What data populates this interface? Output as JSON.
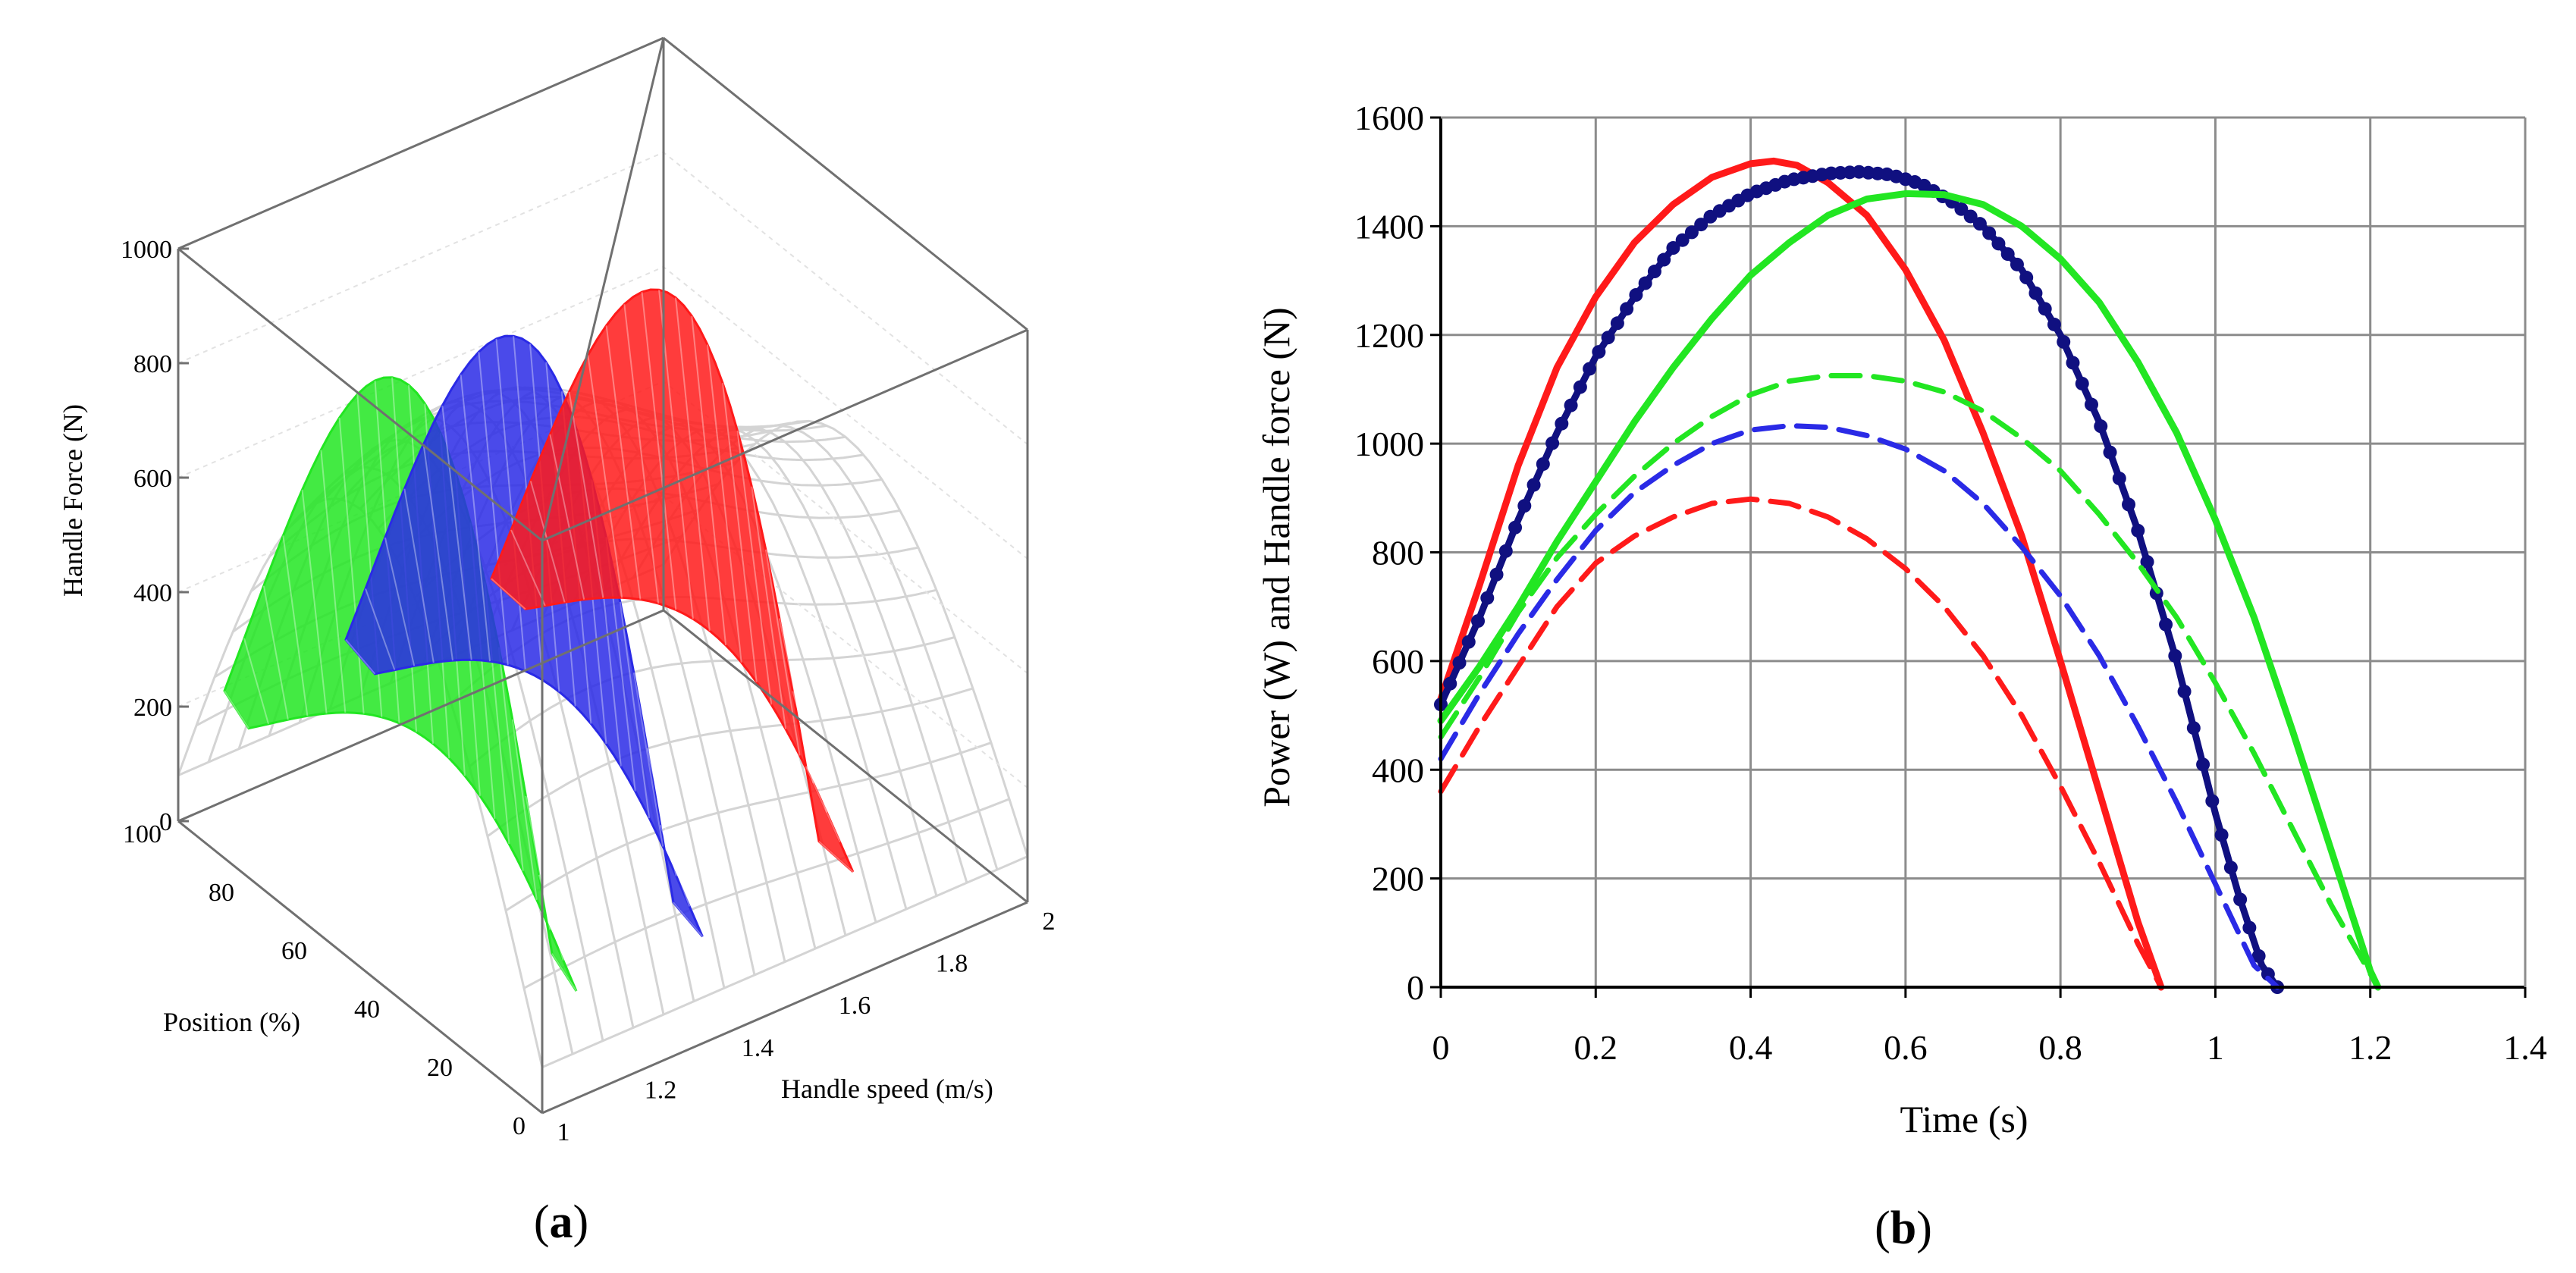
{
  "panels": {
    "a": {
      "label_open": "(",
      "label_letter": "a",
      "label_close": ")"
    },
    "b": {
      "label_open": "(",
      "label_letter": "b",
      "label_close": ")"
    }
  },
  "colors": {
    "red": "#ff1a1a",
    "blue": "#2a2ae6",
    "green": "#22e622",
    "navy": "#101080",
    "grid": "#8c8c8c",
    "wire": "#d4d4d4"
  },
  "chart_data": [
    {
      "type": "surface3d",
      "panel": "a",
      "zlabel": "Handle Force (N)",
      "xlabel": "Handle speed (m/s)",
      "ylabel": "Position (%)",
      "z_ticks": [
        "0",
        "200",
        "400",
        "600",
        "800",
        "1000"
      ],
      "x_ticks": [
        "1",
        "1.2",
        "1.4",
        "1.6",
        "1.8",
        "2"
      ],
      "y_ticks": [
        "0",
        "20",
        "40",
        "60",
        "80",
        "100"
      ],
      "zlim": [
        0,
        1000
      ],
      "xlim": [
        1,
        2
      ],
      "ylim": [
        0,
        100
      ],
      "ribbons": [
        {
          "color": "green",
          "peak_force": 980
        },
        {
          "color": "blue",
          "peak_force": 960
        },
        {
          "color": "red",
          "peak_force": 930
        }
      ]
    },
    {
      "type": "line",
      "panel": "b",
      "xlabel": "Time (s)",
      "ylabel": "Power (W) and Handle force (N)",
      "xlim": [
        0,
        1.4
      ],
      "ylim": [
        0,
        1600
      ],
      "x_ticks": [
        "0",
        "0.2",
        "0.4",
        "0.6",
        "0.8",
        "1",
        "1.2",
        "1.4"
      ],
      "y_ticks": [
        "0",
        "200",
        "400",
        "600",
        "800",
        "1000",
        "1200",
        "1400",
        "1600"
      ],
      "grid": true,
      "series": [
        {
          "color": "red",
          "style": "solid",
          "x": [
            0,
            0.05,
            0.1,
            0.15,
            0.2,
            0.25,
            0.3,
            0.35,
            0.4,
            0.43,
            0.46,
            0.5,
            0.55,
            0.6,
            0.65,
            0.7,
            0.75,
            0.8,
            0.85,
            0.9,
            0.93
          ],
          "y": [
            530,
            740,
            960,
            1140,
            1270,
            1370,
            1440,
            1490,
            1515,
            1520,
            1512,
            1480,
            1420,
            1320,
            1190,
            1020,
            830,
            600,
            360,
            120,
            0
          ]
        },
        {
          "color": "navy",
          "style": "solid-markers",
          "x": [
            0,
            0.05,
            0.1,
            0.15,
            0.2,
            0.25,
            0.3,
            0.35,
            0.4,
            0.45,
            0.5,
            0.54,
            0.58,
            0.62,
            0.66,
            0.7,
            0.75,
            0.8,
            0.85,
            0.9,
            0.95,
            1.0,
            1.03,
            1.06,
            1.08
          ],
          "y": [
            520,
            680,
            860,
            1020,
            1160,
            1270,
            1360,
            1420,
            1460,
            1485,
            1497,
            1500,
            1495,
            1478,
            1445,
            1400,
            1320,
            1200,
            1040,
            840,
            600,
            320,
            170,
            40,
            0
          ]
        },
        {
          "color": "green",
          "style": "solid",
          "x": [
            0,
            0.05,
            0.1,
            0.15,
            0.2,
            0.25,
            0.3,
            0.35,
            0.4,
            0.45,
            0.5,
            0.55,
            0.6,
            0.65,
            0.7,
            0.75,
            0.8,
            0.85,
            0.9,
            0.95,
            1.0,
            1.05,
            1.1,
            1.15,
            1.2,
            1.21
          ],
          "y": [
            490,
            590,
            700,
            820,
            930,
            1040,
            1140,
            1230,
            1310,
            1370,
            1420,
            1450,
            1460,
            1458,
            1440,
            1400,
            1340,
            1260,
            1150,
            1020,
            860,
            680,
            470,
            250,
            30,
            0
          ]
        },
        {
          "color": "green",
          "style": "dashed",
          "x": [
            0,
            0.05,
            0.1,
            0.15,
            0.2,
            0.25,
            0.3,
            0.35,
            0.4,
            0.45,
            0.5,
            0.55,
            0.6,
            0.65,
            0.7,
            0.75,
            0.8,
            0.85,
            0.9,
            0.95,
            1.0,
            1.05,
            1.1,
            1.15,
            1.21
          ],
          "y": [
            460,
            570,
            690,
            790,
            870,
            940,
            1000,
            1050,
            1090,
            1115,
            1125,
            1125,
            1115,
            1095,
            1060,
            1010,
            950,
            870,
            780,
            680,
            560,
            430,
            290,
            150,
            0
          ]
        },
        {
          "color": "blue",
          "style": "dashed",
          "x": [
            0,
            0.05,
            0.1,
            0.15,
            0.2,
            0.25,
            0.3,
            0.35,
            0.4,
            0.45,
            0.5,
            0.55,
            0.6,
            0.65,
            0.7,
            0.75,
            0.8,
            0.85,
            0.9,
            0.95,
            1.0,
            1.05,
            1.08
          ],
          "y": [
            420,
            540,
            650,
            750,
            840,
            910,
            960,
            1000,
            1025,
            1033,
            1030,
            1015,
            990,
            950,
            890,
            810,
            720,
            610,
            480,
            340,
            190,
            40,
            0
          ]
        },
        {
          "color": "red",
          "style": "dashed",
          "x": [
            0,
            0.05,
            0.1,
            0.15,
            0.2,
            0.25,
            0.3,
            0.35,
            0.4,
            0.45,
            0.5,
            0.55,
            0.6,
            0.65,
            0.7,
            0.75,
            0.8,
            0.85,
            0.9,
            0.93
          ],
          "y": [
            360,
            480,
            590,
            700,
            780,
            830,
            865,
            890,
            898,
            890,
            865,
            825,
            770,
            700,
            610,
            500,
            370,
            230,
            80,
            0
          ]
        }
      ]
    }
  ]
}
